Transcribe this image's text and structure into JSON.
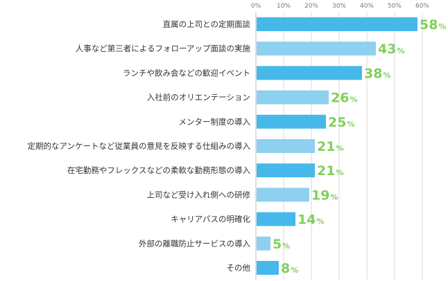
{
  "chart_data": {
    "type": "bar",
    "orientation": "horizontal",
    "title": "",
    "xlabel": "",
    "ylabel": "",
    "xlim": [
      0,
      60
    ],
    "ticks": [
      "0%",
      "10%",
      "20%",
      "30%",
      "40%",
      "50%",
      "60%"
    ],
    "grid": true,
    "value_unit": "%",
    "categories": [
      "直属の上司との定期面談",
      "人事など第三者によるフォローアップ面談の実施",
      "ランチや飲み会などの歓迎イベント",
      "入社前のオリエンテーション",
      "メンター制度の導入",
      "定期的なアンケートなど従業員の意見を反映する仕組みの導入",
      "在宅勤務やフレックスなどの柔軟な勤務形態の導入",
      "上司など受け入れ側への研修",
      "キャリアパスの明確化",
      "外部の離職防止サービスの導入",
      "その他"
    ],
    "values": [
      58,
      43,
      38,
      26,
      25,
      21,
      21,
      19,
      14,
      5,
      8
    ],
    "colors": {
      "bar_dark": "#46b9ea",
      "bar_light": "#8ed0ef",
      "value_text": "#7ed15a",
      "grid": "#d9d9d9"
    }
  }
}
